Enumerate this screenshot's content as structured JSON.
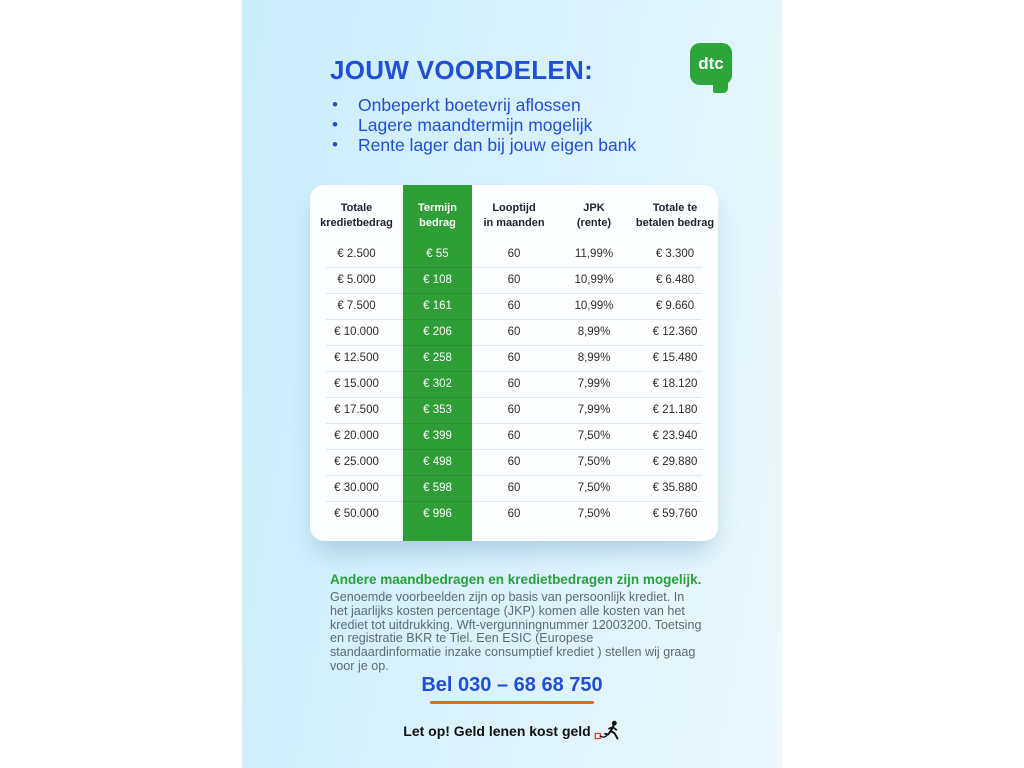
{
  "header": {
    "title": "JOUW VOORDELEN:",
    "bullets": [
      "Onbeperkt boetevrij aflossen",
      "Lagere maandtermijn mogelijk",
      "Rente lager dan bij jouw eigen bank"
    ],
    "logo_text": "dtc"
  },
  "table": {
    "columns": [
      {
        "line1": "Totale",
        "line2": "kredietbedrag"
      },
      {
        "line1": "Termijn",
        "line2": "bedrag"
      },
      {
        "line1": "Looptijd",
        "line2": "in maanden"
      },
      {
        "line1": "JPK",
        "line2": "(rente)"
      },
      {
        "line1": "Totale te",
        "line2": "betalen bedrag"
      }
    ],
    "rows": [
      [
        "€ 2.500",
        "€ 55",
        "60",
        "11,99%",
        "€ 3.300"
      ],
      [
        "€ 5.000",
        "€ 108",
        "60",
        "10,99%",
        "€ 6.480"
      ],
      [
        "€ 7.500",
        "€ 161",
        "60",
        "10,99%",
        "€ 9.660"
      ],
      [
        "€ 10.000",
        "€ 206",
        "60",
        "8,99%",
        "€ 12.360"
      ],
      [
        "€ 12.500",
        "€ 258",
        "60",
        "8,99%",
        "€ 15.480"
      ],
      [
        "€ 15.000",
        "€ 302",
        "60",
        "7,99%",
        "€ 18.120"
      ],
      [
        "€ 17.500",
        "€ 353",
        "60",
        "7,99%",
        "€ 21.180"
      ],
      [
        "€ 20.000",
        "€ 399",
        "60",
        "7,50%",
        "€ 23.940"
      ],
      [
        "€ 25.000",
        "€ 498",
        "60",
        "7,50%",
        "€ 29.880"
      ],
      [
        "€ 30.000",
        "€ 598",
        "60",
        "7,50%",
        "€ 35.880"
      ],
      [
        "€ 50.000",
        "€ 996",
        "60",
        "7,50%",
        "€ 59.760"
      ]
    ]
  },
  "footer": {
    "highlight": "Andere maandbedragen en kredietbedragen zijn mogelijk.",
    "disclaimer": "Genoemde voorbeelden zijn op basis van persoonlijk krediet. In het jaarlijks kosten percentage (JKP) komen alle kosten van het krediet tot uitdrukking. Wft-vergunningnummer 12003200. Toetsing en registratie BKR te Tiel. Een ESIC (Europese standaardinformatie inzake consumptief krediet ) stellen wij graag voor je op.",
    "phone": "Bel 030 – 68 68 750",
    "warning": "Let op! Geld lenen kost geld"
  },
  "icons": {
    "logo": "dtc-speech-bubble-logo",
    "warning": "runner-dragging-money-weight-icon"
  },
  "colors": {
    "accent_blue": "#2150d6",
    "green": "#2f9e36",
    "logo_green": "#2ca53a",
    "orange_underline": "#e06a2c",
    "background_blue": "#c9edfa",
    "disclaimer_gray": "#5f6b73"
  }
}
